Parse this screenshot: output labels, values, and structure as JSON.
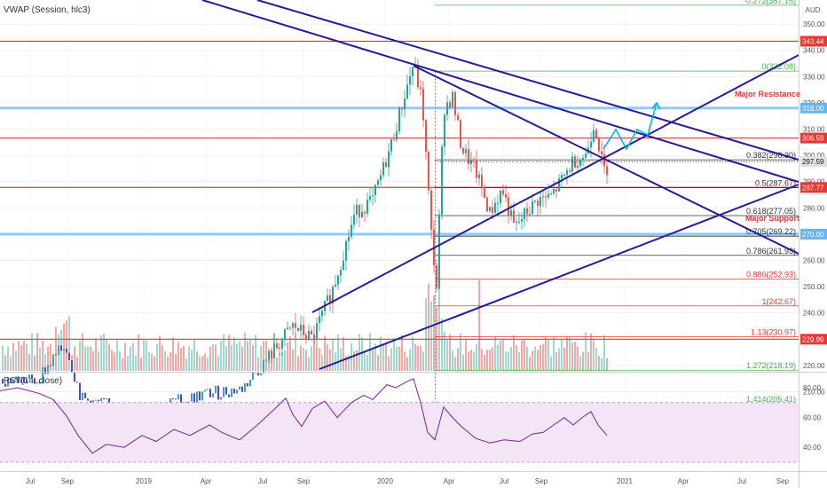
{
  "indicators": {
    "top_label": "VWAP (Session, hlc3)",
    "rsi_label": "RSI (14, close)"
  },
  "chart_data": {
    "type": "candlestick",
    "currency": "AUD",
    "x_ticks": [
      "Jul",
      "Sep",
      "2019",
      "Apr",
      "Jul",
      "Sep",
      "2020",
      "Apr",
      "Jul",
      "Sep",
      "2021",
      "Apr",
      "Jul",
      "Sep"
    ],
    "y_ticks": [
      "350.00",
      "340.00",
      "330.00",
      "320.00",
      "310.00",
      "300.00",
      "290.00",
      "280.00",
      "270.00",
      "260.00",
      "250.00",
      "240.00",
      "230.00",
      "220.00",
      "210.00"
    ],
    "ylim": [
      200,
      360
    ],
    "horizontal_levels": [
      {
        "label": "343.44",
        "value": 343.44,
        "color": "#e53935",
        "kind": "resistance"
      },
      {
        "label": "318.00",
        "value": 318.0,
        "color": "#64b5f6",
        "kind": "zone"
      },
      {
        "label": "306.59",
        "value": 306.59,
        "color": "#e53935",
        "kind": "resistance"
      },
      {
        "label": "287.77",
        "value": 287.77,
        "color": "#e53935",
        "kind": "support"
      },
      {
        "label": "270.00",
        "value": 270.0,
        "color": "#64b5f6",
        "kind": "zone"
      },
      {
        "label": "229.99",
        "value": 229.99,
        "color": "#e53935",
        "kind": "support"
      }
    ],
    "current_price": {
      "label": "297.59",
      "value": 297.59
    },
    "fib_levels": [
      {
        "label": "-0.272(357.16)",
        "value": 357.16,
        "color": "#4caf50"
      },
      {
        "label": "0(332.08)",
        "value": 332.08,
        "color": "#4caf50"
      },
      {
        "label": "0.382(298.30)",
        "value": 298.3,
        "color": "#333333"
      },
      {
        "label": "0.5(287.67)",
        "value": 287.67,
        "color": "#333333"
      },
      {
        "label": "0.618(277.05)",
        "value": 277.05,
        "color": "#333333"
      },
      {
        "label": "0.705(269.22)",
        "value": 269.22,
        "color": "#333333"
      },
      {
        "label": "0.786(261.93)",
        "value": 261.93,
        "color": "#333333"
      },
      {
        "label": "0.886(252.93)",
        "value": 252.93,
        "color": "#e53935"
      },
      {
        "label": "1(242.67)",
        "value": 242.67,
        "color": "#e53935"
      },
      {
        "label": "1.13(230.97)",
        "value": 230.97,
        "color": "#e53935"
      },
      {
        "label": "1.272(218.19)",
        "value": 218.19,
        "color": "#4caf50"
      },
      {
        "label": "1.414(205.41)",
        "value": 205.41,
        "color": "#4caf50"
      }
    ],
    "annotations": [
      {
        "text": "Major Resistance",
        "color": "#e53935"
      },
      {
        "text": "Major Support",
        "color": "#e53935"
      }
    ],
    "rsi": {
      "y_ticks": [
        "80.00",
        "60.00",
        "40.00"
      ],
      "ylim": [
        30,
        90
      ],
      "band": [
        30,
        70
      ]
    },
    "colors": {
      "up": "#26a69a",
      "down": "#ef5350",
      "trendline": "#2a1b96",
      "projection": "#00bcd4",
      "rsi_line": "#7b1fa2",
      "rsi_band": "#f3e5f5"
    }
  }
}
